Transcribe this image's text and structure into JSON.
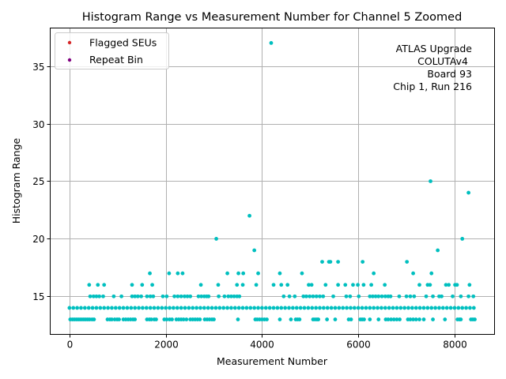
{
  "chart_data": {
    "type": "scatter",
    "title": "Histogram Range vs Measurement Number for Channel 5 Zoomed",
    "xlabel": "Measurement Number",
    "ylabel": "Histogram Range",
    "xlim": [
      -400,
      8830
    ],
    "ylim": [
      11.7,
      38.3
    ],
    "xticks": [
      0,
      2000,
      4000,
      6000,
      8000
    ],
    "yticks": [
      15,
      20,
      25,
      30,
      35
    ],
    "grid": true,
    "legend": {
      "placement": "top-left",
      "entries": [
        {
          "label": "Flagged SEUs",
          "color": "#d62728"
        },
        {
          "label": "Repeat Bin",
          "color": "#800080"
        }
      ]
    },
    "annotation": [
      "ATLAS Upgrade",
      "COLUTAv4",
      "Board 93",
      "Chip 1, Run 216"
    ],
    "series_color": "#00bfbf",
    "points_by_y": {
      "13": [
        16,
        60,
        100,
        140,
        180,
        220,
        260,
        300,
        340,
        380,
        420,
        470,
        510,
        790,
        840,
        880,
        940,
        990,
        1030,
        1120,
        1170,
        1220,
        1270,
        1320,
        1360,
        1610,
        1660,
        1700,
        1760,
        1800,
        1970,
        2020,
        2080,
        2130,
        2220,
        2270,
        2320,
        2370,
        2430,
        2510,
        2560,
        2610,
        2660,
        2710,
        2810,
        2860,
        2910,
        2960,
        3000,
        3500,
        3860,
        3900,
        3950,
        4000,
        4050,
        4100,
        4370,
        4600,
        4700,
        4740,
        4780,
        5060,
        5100,
        5140,
        5170,
        5350,
        5520,
        5800,
        5850,
        6040,
        6080,
        6120,
        6240,
        6420,
        6570,
        6620,
        6680,
        6740,
        6800,
        6860,
        7030,
        7080,
        7140,
        7200,
        7270,
        7360,
        7550,
        7800,
        8060,
        8100,
        8130,
        8340,
        8380,
        8420
      ],
      "14": [
        0,
        80,
        160,
        240,
        320,
        400,
        480,
        560,
        640,
        720,
        800,
        880,
        960,
        1040,
        1120,
        1200,
        1280,
        1360,
        1440,
        1520,
        1600,
        1680,
        1760,
        1840,
        1920,
        2000,
        2080,
        2160,
        2240,
        2320,
        2400,
        2480,
        2560,
        2640,
        2720,
        2800,
        2880,
        2960,
        3040,
        3120,
        3200,
        3280,
        3360,
        3440,
        3520,
        3600,
        3680,
        3760,
        3840,
        3920,
        4000,
        4080,
        4160,
        4240,
        4320,
        4400,
        4480,
        4560,
        4640,
        4720,
        4800,
        4880,
        4960,
        5040,
        5120,
        5200,
        5280,
        5360,
        5440,
        5520,
        5600,
        5680,
        5760,
        5840,
        5920,
        6000,
        6080,
        6160,
        6240,
        6320,
        6400,
        6480,
        6560,
        6640,
        6720,
        6800,
        6880,
        6960,
        7040,
        7120,
        7200,
        7280,
        7360,
        7440,
        7520,
        7600,
        7680,
        7760,
        7840,
        7920,
        8000,
        8080,
        8160,
        8240,
        8320,
        8400
      ],
      "15": [
        430,
        500,
        560,
        620,
        700,
        920,
        1080,
        1300,
        1360,
        1420,
        1490,
        1610,
        1680,
        1740,
        1940,
        2020,
        2180,
        2250,
        2320,
        2390,
        2450,
        2510,
        2680,
        2740,
        2800,
        2850,
        2890,
        3100,
        3220,
        3300,
        3360,
        3420,
        3480,
        3530,
        4450,
        4570,
        4680,
        4860,
        4920,
        4990,
        5060,
        5130,
        5200,
        5270,
        5480,
        5750,
        5830,
        6010,
        6240,
        6300,
        6360,
        6420,
        6490,
        6560,
        6620,
        6670,
        6850,
        7000,
        7080,
        7160,
        7410,
        7550,
        7680,
        7730,
        7960,
        8130,
        8290,
        8390
      ],
      "16": [
        410,
        590,
        720,
        1300,
        1510,
        1720,
        2730,
        3090,
        3480,
        3600,
        3880,
        4240,
        4400,
        4530,
        4970,
        5030,
        5320,
        5580,
        5730,
        5890,
        5990,
        6110,
        6270,
        6550,
        7270,
        7440,
        7490,
        7820,
        7880,
        8010,
        8050,
        8310
      ],
      "17": [
        1670,
        2070,
        2250,
        2350,
        3280,
        3510,
        3610,
        3920,
        4370,
        4830,
        6320,
        7140,
        7520
      ],
      "18": [
        5250,
        5390,
        5420,
        5580,
        6090,
        7010
      ],
      "19": [
        3840,
        7650
      ],
      "20": [
        3050,
        8160
      ],
      "22": [
        3740
      ],
      "24": [
        8290
      ],
      "25": [
        7500
      ],
      "37": [
        4190
      ]
    }
  }
}
